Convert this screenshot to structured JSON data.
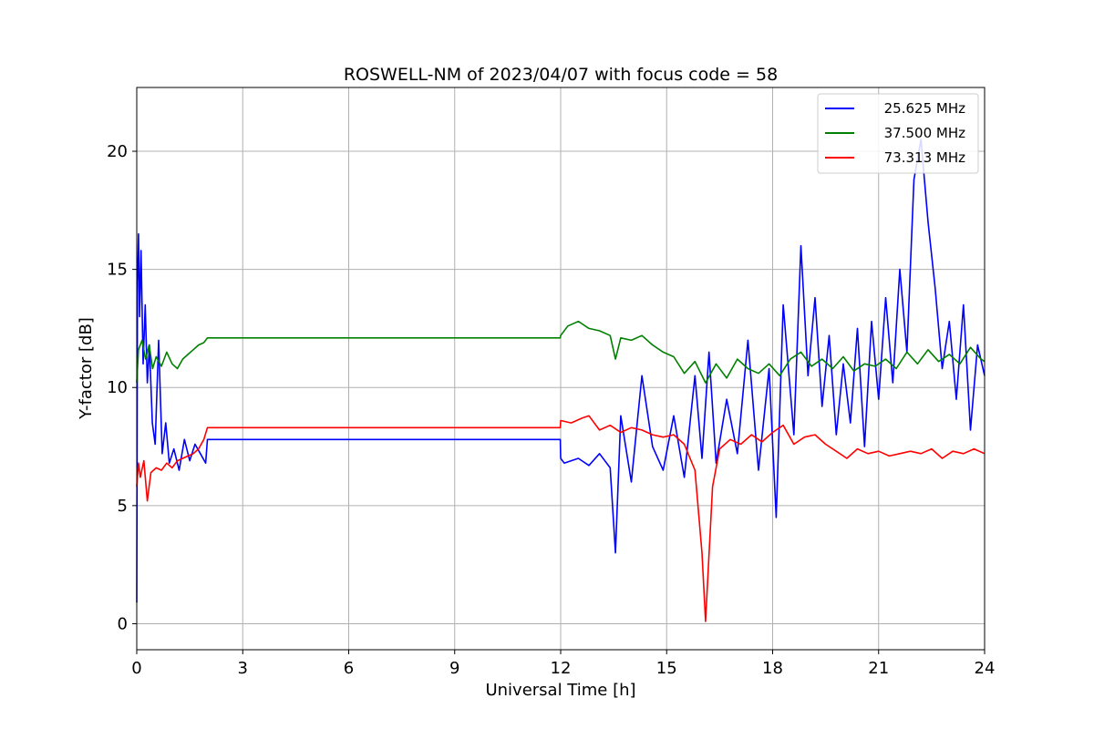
{
  "chart_data": {
    "type": "line",
    "title": "ROSWELL-NM of 2023/04/07 with focus code = 58",
    "xlabel": "Universal Time [h]",
    "ylabel": "Y-factor [dB]",
    "xlim": [
      0,
      24
    ],
    "ylim": [
      -1.1,
      22.7
    ],
    "xticks": [
      0,
      3,
      6,
      9,
      12,
      15,
      18,
      21,
      24
    ],
    "yticks": [
      0,
      5,
      10,
      15,
      20
    ],
    "grid": true,
    "legend_position": "top-right",
    "series": [
      {
        "name": "25.625 MHz",
        "color": "#0000ff",
        "x": [
          0.0,
          0.02,
          0.05,
          0.08,
          0.12,
          0.18,
          0.24,
          0.3,
          0.36,
          0.44,
          0.52,
          0.62,
          0.72,
          0.82,
          0.92,
          1.05,
          1.2,
          1.35,
          1.5,
          1.65,
          1.8,
          1.95,
          2.0,
          11.99,
          12.0,
          12.1,
          12.3,
          12.5,
          12.8,
          13.1,
          13.4,
          13.55,
          13.7,
          14.0,
          14.3,
          14.6,
          14.9,
          15.2,
          15.5,
          15.8,
          16.0,
          16.2,
          16.4,
          16.7,
          17.0,
          17.3,
          17.6,
          17.9,
          18.1,
          18.3,
          18.6,
          18.8,
          19.0,
          19.2,
          19.4,
          19.6,
          19.8,
          20.0,
          20.2,
          20.4,
          20.6,
          20.8,
          21.0,
          21.2,
          21.4,
          21.6,
          21.8,
          22.0,
          22.2,
          22.4,
          22.6,
          22.8,
          23.0,
          23.2,
          23.4,
          23.6,
          23.8,
          24.0
        ],
        "y": [
          0.9,
          14.5,
          16.5,
          13.0,
          15.8,
          11.0,
          13.5,
          10.2,
          11.8,
          8.5,
          7.6,
          12.0,
          7.2,
          8.5,
          6.8,
          7.4,
          6.5,
          7.8,
          6.9,
          7.6,
          7.2,
          6.8,
          7.8,
          7.8,
          7.0,
          6.8,
          6.9,
          7.0,
          6.7,
          7.2,
          6.6,
          3.0,
          8.8,
          6.0,
          10.5,
          7.5,
          6.5,
          8.8,
          6.2,
          10.5,
          7.0,
          11.5,
          6.8,
          9.5,
          7.2,
          12.0,
          6.5,
          10.8,
          4.5,
          13.5,
          8.0,
          16.0,
          10.5,
          13.8,
          9.2,
          12.2,
          8.0,
          11.0,
          8.5,
          12.5,
          7.5,
          12.8,
          9.5,
          13.8,
          10.2,
          15.0,
          11.5,
          18.8,
          20.5,
          17.0,
          14.2,
          10.8,
          12.8,
          9.5,
          13.5,
          8.2,
          11.8,
          10.5
        ]
      },
      {
        "name": "37.500 MHz",
        "color": "#008000",
        "x": [
          0.0,
          0.05,
          0.15,
          0.25,
          0.35,
          0.45,
          0.55,
          0.7,
          0.85,
          1.0,
          1.15,
          1.3,
          1.45,
          1.6,
          1.75,
          1.9,
          2.0,
          11.99,
          12.0,
          12.2,
          12.5,
          12.8,
          13.1,
          13.4,
          13.55,
          13.7,
          14.0,
          14.3,
          14.6,
          14.9,
          15.2,
          15.5,
          15.8,
          16.1,
          16.4,
          16.7,
          17.0,
          17.3,
          17.6,
          17.9,
          18.2,
          18.5,
          18.8,
          19.1,
          19.4,
          19.7,
          20.0,
          20.3,
          20.6,
          20.9,
          21.2,
          21.5,
          21.8,
          22.1,
          22.4,
          22.7,
          23.0,
          23.3,
          23.6,
          23.9,
          24.0
        ],
        "y": [
          10.2,
          11.6,
          12.0,
          11.2,
          11.8,
          10.8,
          11.3,
          10.9,
          11.5,
          11.0,
          10.8,
          11.2,
          11.4,
          11.6,
          11.8,
          11.9,
          12.1,
          12.1,
          12.2,
          12.6,
          12.8,
          12.5,
          12.4,
          12.2,
          11.2,
          12.1,
          12.0,
          12.2,
          11.8,
          11.5,
          11.3,
          10.6,
          11.1,
          10.2,
          11.0,
          10.4,
          11.2,
          10.8,
          10.6,
          11.0,
          10.5,
          11.2,
          11.5,
          10.9,
          11.2,
          10.8,
          11.3,
          10.7,
          11.0,
          10.9,
          11.2,
          10.8,
          11.5,
          11.0,
          11.6,
          11.1,
          11.4,
          11.0,
          11.7,
          11.2,
          11.1
        ]
      },
      {
        "name": "73.313 MHz",
        "color": "#ff0000",
        "x": [
          0.0,
          0.05,
          0.1,
          0.2,
          0.3,
          0.4,
          0.55,
          0.7,
          0.85,
          1.0,
          1.15,
          1.3,
          1.45,
          1.6,
          1.75,
          1.9,
          2.0,
          11.99,
          12.0,
          12.3,
          12.6,
          12.8,
          13.1,
          13.4,
          13.7,
          14.0,
          14.3,
          14.6,
          14.9,
          15.2,
          15.5,
          15.8,
          16.0,
          16.1,
          16.3,
          16.5,
          16.8,
          17.1,
          17.4,
          17.7,
          18.0,
          18.3,
          18.6,
          18.9,
          19.2,
          19.5,
          19.8,
          20.1,
          20.4,
          20.7,
          21.0,
          21.3,
          21.6,
          21.9,
          22.2,
          22.5,
          22.8,
          23.1,
          23.4,
          23.7,
          24.0
        ],
        "y": [
          5.8,
          6.8,
          6.2,
          6.9,
          5.2,
          6.4,
          6.6,
          6.5,
          6.8,
          6.6,
          6.9,
          7.0,
          7.1,
          7.2,
          7.4,
          7.8,
          8.3,
          8.3,
          8.6,
          8.5,
          8.7,
          8.8,
          8.2,
          8.4,
          8.1,
          8.3,
          8.2,
          8.0,
          7.9,
          8.0,
          7.6,
          6.5,
          3.0,
          0.1,
          5.8,
          7.4,
          7.8,
          7.6,
          8.0,
          7.7,
          8.1,
          8.4,
          7.6,
          7.9,
          8.0,
          7.6,
          7.3,
          7.0,
          7.4,
          7.2,
          7.3,
          7.1,
          7.2,
          7.3,
          7.2,
          7.4,
          7.0,
          7.3,
          7.2,
          7.4,
          7.2
        ]
      }
    ]
  }
}
